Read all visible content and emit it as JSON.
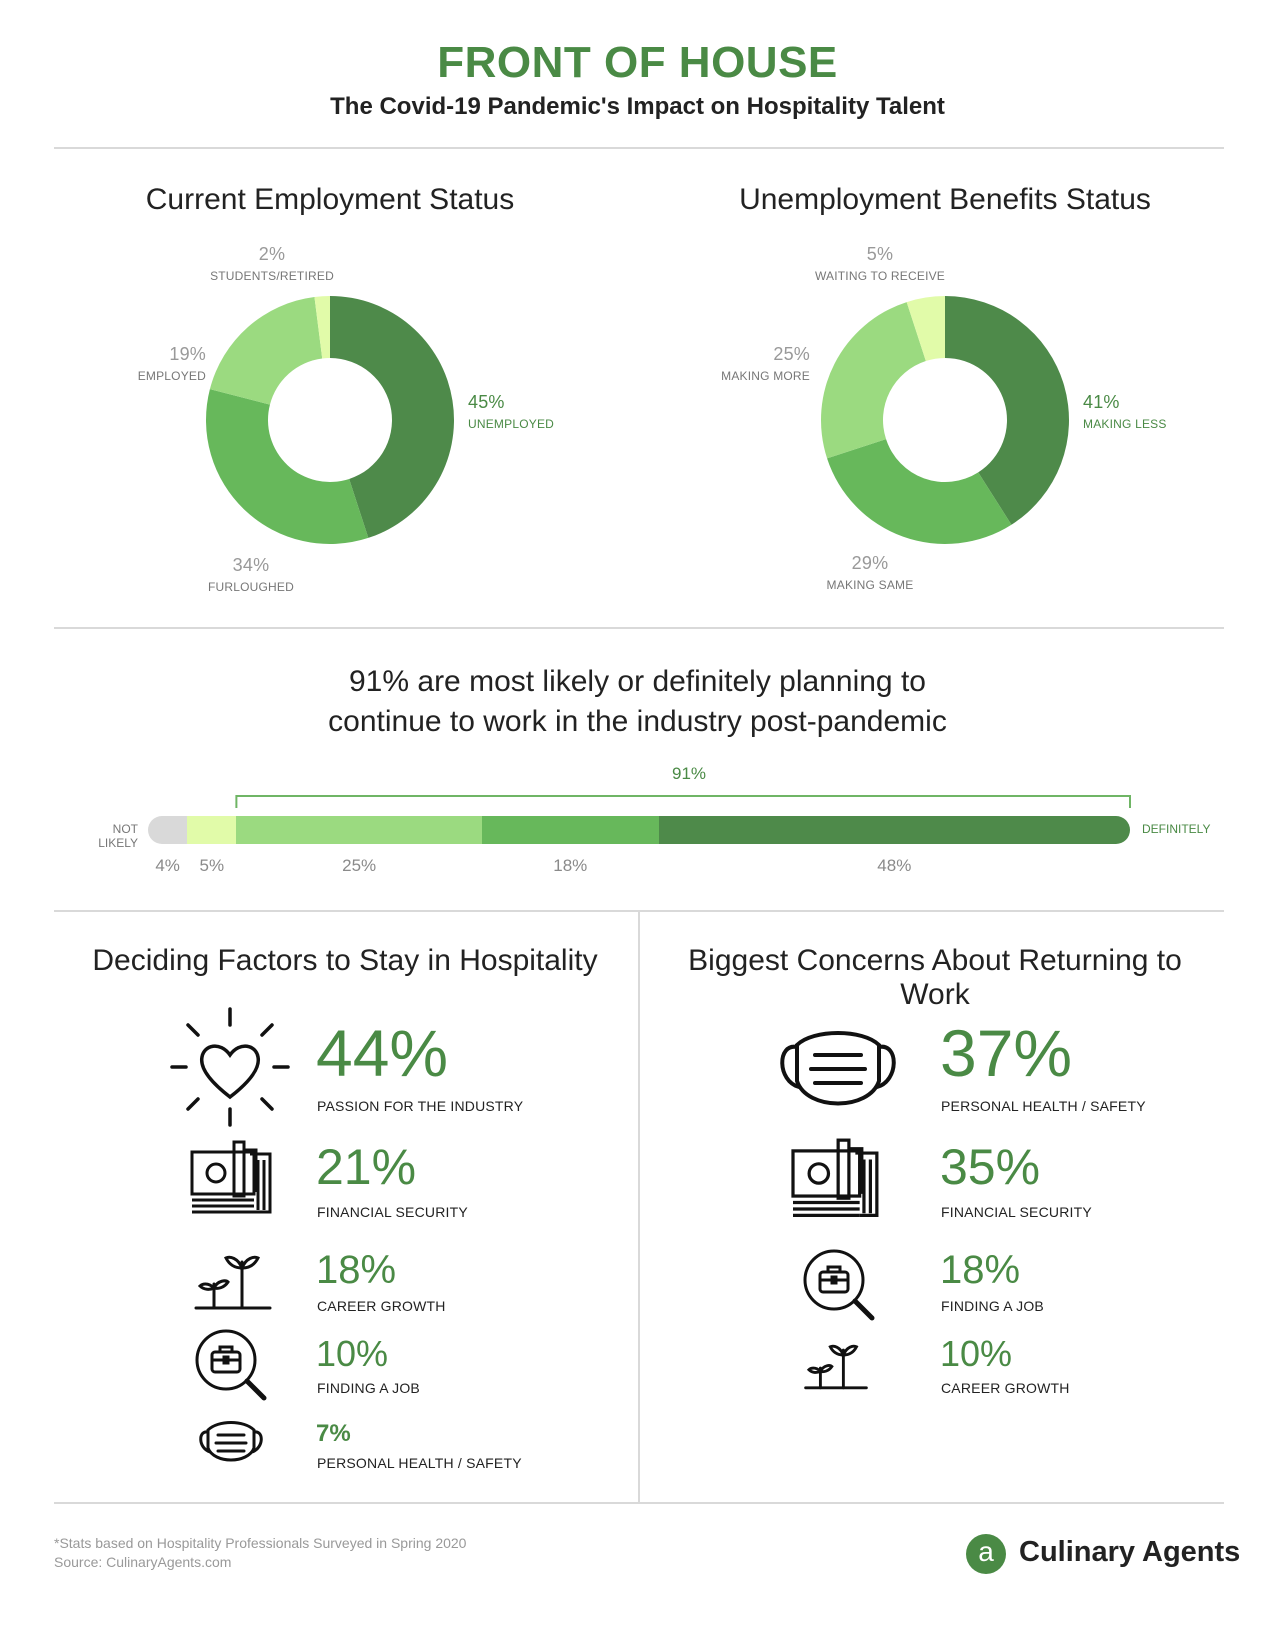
{
  "header": {
    "title": "FRONT OF HOUSE",
    "subtitle": "The Covid-19 Pandemic's Impact on Hospitality Talent"
  },
  "colors": {
    "dark_green": "#4e8a4a",
    "mid_green": "#67b85b",
    "light_green": "#9bda80",
    "pale_green": "#e1fba9",
    "gray": "#d9d9d9",
    "text_green": "#4a8a45"
  },
  "chart_data": [
    {
      "type": "pie",
      "title": "Current Employment Status",
      "donut": true,
      "slices": [
        {
          "label": "UNEMPLOYED",
          "value": 45,
          "pct_text": "45%"
        },
        {
          "label": "FURLOUGHED",
          "value": 34,
          "pct_text": "34%"
        },
        {
          "label": "EMPLOYED",
          "value": 19,
          "pct_text": "19%"
        },
        {
          "label": "STUDENTS/RETIRED",
          "value": 2,
          "pct_text": "2%"
        }
      ]
    },
    {
      "type": "pie",
      "title": "Unemployment Benefits Status",
      "donut": true,
      "slices": [
        {
          "label": "MAKING LESS",
          "value": 41,
          "pct_text": "41%"
        },
        {
          "label": "MAKING SAME",
          "value": 29,
          "pct_text": "29%"
        },
        {
          "label": "MAKING MORE",
          "value": 25,
          "pct_text": "25%"
        },
        {
          "label": "WAITING TO RECEIVE",
          "value": 5,
          "pct_text": "5%"
        }
      ]
    },
    {
      "type": "bar",
      "stacked": true,
      "title": "91% are most likely or definitely planning to continue to work in the industry post-pandemic",
      "bracket_label": "91%",
      "left_label": "NOT LIKELY",
      "right_label": "DEFINITELY",
      "segments": [
        {
          "value": 4,
          "pct_text": "4%"
        },
        {
          "value": 5,
          "pct_text": "5%"
        },
        {
          "value": 25,
          "pct_text": "25%"
        },
        {
          "value": 18,
          "pct_text": "18%"
        },
        {
          "value": 48,
          "pct_text": "48%"
        }
      ]
    }
  ],
  "headline": {
    "line1": "91% are most likely or definitely planning to",
    "line2": "continue to work in the industry post-pandemic"
  },
  "deciding_factors": {
    "title": "Deciding Factors to Stay in Hospitality",
    "items": [
      {
        "pct": "44%",
        "label": "PASSION FOR THE INDUSTRY",
        "icon": "heart-icon"
      },
      {
        "pct": "21%",
        "label": "FINANCIAL SECURITY",
        "icon": "money-icon"
      },
      {
        "pct": "18%",
        "label": "CAREER GROWTH",
        "icon": "sprout-icon"
      },
      {
        "pct": "10%",
        "label": "FINDING A JOB",
        "icon": "job-search-icon"
      },
      {
        "pct": "7%",
        "label": "PERSONAL HEALTH / SAFETY",
        "icon": "mask-icon"
      }
    ]
  },
  "concerns": {
    "title": "Biggest Concerns About Returning to Work",
    "items": [
      {
        "pct": "37%",
        "label": "PERSONAL HEALTH / SAFETY",
        "icon": "mask-icon"
      },
      {
        "pct": "35%",
        "label": "FINANCIAL SECURITY",
        "icon": "money-icon"
      },
      {
        "pct": "18%",
        "label": "FINDING A JOB",
        "icon": "job-search-icon"
      },
      {
        "pct": "10%",
        "label": "CAREER GROWTH",
        "icon": "sprout-icon"
      }
    ]
  },
  "footer": {
    "note": "*Stats based on Hospitality Professionals Surveyed in Spring 2020",
    "source": "Source: CulinaryAgents.com",
    "logo_letter": "a",
    "brand": "Culinary Agents"
  }
}
